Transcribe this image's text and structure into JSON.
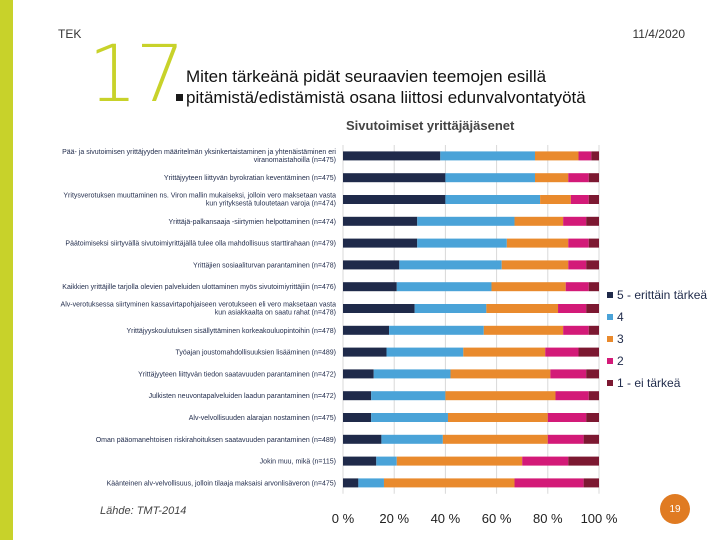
{
  "header": {
    "org": "TEK",
    "date": "11/4/2020",
    "slide_number": "17",
    "title_line1": "Miten tärkeänä pidät seuraavien teemojen esillä",
    "title_line2": "pitämistä/edistämistä osana liittosi edunvalvontatyötä"
  },
  "footer": {
    "source": "Lähde: TMT-2014",
    "page": "19"
  },
  "colors": {
    "accent": "#c8d22a",
    "page_badge": "#e07b22"
  },
  "chart_data": {
    "type": "bar",
    "orientation": "horizontal-stacked-100",
    "title": "Sivutoimiset yrittäjäjäsenet",
    "xlim": [
      0,
      100
    ],
    "xticks": [
      "0 %",
      "20 %",
      "40 %",
      "60 %",
      "80 %",
      "100 %"
    ],
    "legend_position": "right",
    "categories": [
      [
        "Pää- ja sivutoimisen yrittäjyyden määritelmän yksinkertaistaminen ja yhtenäistäminen eri",
        "viranomaistahoilla (n=475)"
      ],
      [
        "Yrittäjyyteen liittyvän byrokratian keventäminen (n=475)"
      ],
      [
        "Yritysverotuksen muuttaminen ns. Viron mallin mukaiseksi, jolloin vero maksetaan vasta",
        "kun yrityksestä tuloutetaan varoja (n=474)"
      ],
      [
        "Yrittäjä-palkansaaja -siirtymien helpottaminen (n=474)"
      ],
      [
        "Päätoimiseksi siirtyvällä sivutoimiyrittäjällä tulee olla mahdollisuus starttirahaan (n=479)"
      ],
      [
        "Yrittäjien sosiaaliturvan parantaminen (n=478)"
      ],
      [
        "Kaikkien yrittäjille tarjolla olevien palveluiden ulottaminen myös sivutoimiyrittäjiin (n=476)"
      ],
      [
        "Alv-verotuksessa siirtyminen kassavirtapohjaiseen verotukseen eli vero maksetaan vasta",
        "kun asiakkaalta on saatu rahat (n=478)"
      ],
      [
        "Yrittäjyyskoulutuksen sisällyttäminen korkeakouluopintoihin (n=478)"
      ],
      [
        "Työajan joustomahdollisuuksien lisääminen (n=489)"
      ],
      [
        "Yrittäjyyteen liittyvän tiedon saatavuuden parantaminen (n=472)"
      ],
      [
        "Julkisten neuvontapalveluiden laadun parantaminen (n=472)"
      ],
      [
        "Alv-velvollisuuden alarajan nostaminen (n=475)"
      ],
      [
        "Oman pääomanehtoisen riskirahoituksen saatavuuden parantaminen (n=489)"
      ],
      [
        "Jokin muu, mikä (n=115)"
      ],
      [
        "Käänteinen alv-velvollisuus, jolloin tilaaja maksaisi arvonlisäveron (n=475)"
      ]
    ],
    "series": [
      {
        "name": "5 - erittäin tärkeä",
        "color": "#1f2a4a",
        "values": [
          38,
          40,
          40,
          29,
          29,
          22,
          21,
          28,
          18,
          17,
          12,
          11,
          11,
          15,
          13,
          6
        ]
      },
      {
        "name": "4",
        "color": "#4aa3d8",
        "values": [
          37,
          35,
          37,
          38,
          35,
          40,
          37,
          28,
          37,
          30,
          30,
          29,
          30,
          24,
          8,
          10
        ]
      },
      {
        "name": "3",
        "color": "#e98a2d",
        "values": [
          17,
          13,
          12,
          19,
          24,
          26,
          29,
          28,
          31,
          32,
          39,
          43,
          39,
          41,
          49,
          51
        ]
      },
      {
        "name": "2",
        "color": "#d31a78",
        "values": [
          5,
          8,
          7,
          9,
          8,
          7,
          9,
          11,
          10,
          13,
          14,
          13,
          15,
          14,
          18,
          27
        ]
      },
      {
        "name": "1 - ei tärkeä",
        "color": "#7c1831",
        "values": [
          3,
          4,
          4,
          5,
          4,
          5,
          4,
          5,
          4,
          8,
          5,
          4,
          5,
          6,
          12,
          6
        ]
      }
    ]
  }
}
